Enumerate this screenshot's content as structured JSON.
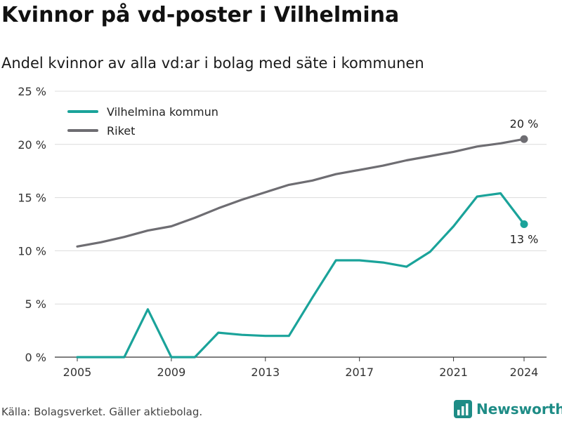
{
  "title": "Kvinnor på vd-poster i Vilhelmina",
  "subtitle": "Andel kvinnor av alla vd:ar i bolag med säte i kommunen",
  "source": "Källa: Bolagsverket. Gäller aktiebolag.",
  "brand": {
    "name": "Newsworthy",
    "icon": "newsworthy-logo-icon",
    "color": "#1e8c86"
  },
  "chart_data": {
    "type": "line",
    "x": [
      2005,
      2006,
      2007,
      2008,
      2009,
      2010,
      2011,
      2012,
      2013,
      2014,
      2015,
      2016,
      2017,
      2018,
      2019,
      2020,
      2021,
      2022,
      2023,
      2024
    ],
    "x_ticks": [
      2005,
      2009,
      2013,
      2017,
      2021,
      2024
    ],
    "x_tick_labels": [
      "2005",
      "2009",
      "2013",
      "2017",
      "2021",
      "2024"
    ],
    "ylim": [
      0,
      25
    ],
    "y_ticks": [
      0,
      5,
      10,
      15,
      20,
      25
    ],
    "y_tick_labels": [
      "0 %",
      "5 %",
      "10 %",
      "15 %",
      "20 %",
      "25 %"
    ],
    "grid": true,
    "legend_position": "top-left",
    "series": [
      {
        "name": "Vilhelmina kommun",
        "color": "#1aa39a",
        "values": [
          0,
          0,
          0,
          4.5,
          0,
          0,
          2.3,
          2.1,
          2.0,
          2.0,
          5.6,
          9.1,
          9.1,
          8.9,
          8.5,
          9.9,
          12.3,
          15.1,
          15.4,
          12.5
        ],
        "end_label": "13 %"
      },
      {
        "name": "Riket",
        "color": "#6e6d72",
        "values": [
          10.4,
          10.8,
          11.3,
          11.9,
          12.3,
          13.1,
          14.0,
          14.8,
          15.5,
          16.2,
          16.6,
          17.2,
          17.6,
          18.0,
          18.5,
          18.9,
          19.3,
          19.8,
          20.1,
          20.5
        ],
        "end_label": "20 %"
      }
    ]
  }
}
